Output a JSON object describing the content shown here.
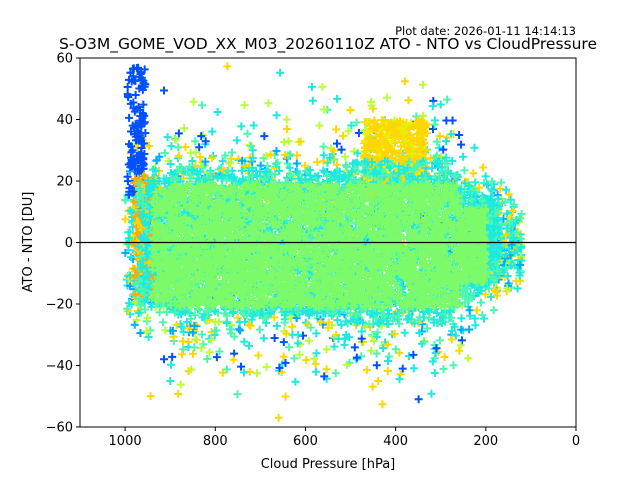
{
  "chart_data": {
    "type": "scatter",
    "title": "S-O3M_GOME_VOD_XX_M03_20260110Z ATO - NTO vs CloudPressure",
    "plot_date": "Plot date: 2026-01-11 14:14:13",
    "xlabel": "Cloud Pressure [hPa]",
    "ylabel": "ATO - NTO [DU]",
    "xlim": [
      1100,
      0
    ],
    "ylim": [
      -60,
      60
    ],
    "x_ticks": [
      1000,
      800,
      600,
      400,
      200,
      0
    ],
    "x_tick_labels": [
      "1000",
      "800",
      "600",
      "400",
      "200",
      "0"
    ],
    "y_ticks": [
      -60,
      -40,
      -20,
      0,
      20,
      40,
      60
    ],
    "y_tick_labels": [
      "−60",
      "−40",
      "−20",
      "0",
      "20",
      "40",
      "60"
    ],
    "reference_line_y": 0,
    "grid": false,
    "marker": "+",
    "colormap_colors": [
      "#0000cc",
      "#0050ff",
      "#00aaff",
      "#1de9e0",
      "#4df5b0",
      "#7dfa6a",
      "#b8ff3a",
      "#e8f000",
      "#ffd700",
      "#ffaa00"
    ],
    "core_color": "#7dfa6a",
    "point_cloud": {
      "x_range": [
        120,
        1000
      ],
      "y_core_range": [
        -20,
        20
      ],
      "y_extreme_range": [
        -58,
        58
      ],
      "description_count": "dense"
    }
  }
}
